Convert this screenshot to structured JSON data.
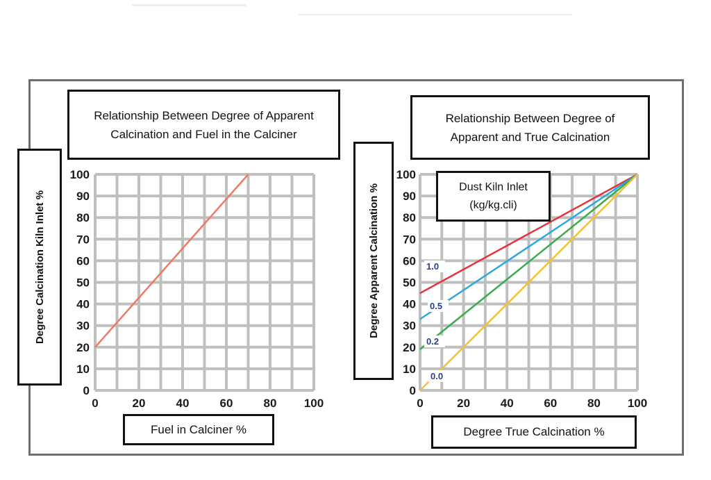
{
  "chart_data": [
    {
      "type": "line",
      "title": "Relationship Between Degree of Apparent Calcination and Fuel in the Calciner",
      "xlabel": "Fuel in Calciner %",
      "ylabel": "Degree Calcination Kiln Inlet %",
      "xlim": [
        0,
        100
      ],
      "ylim": [
        0,
        100
      ],
      "xticks": [
        "0",
        "20",
        "40",
        "60",
        "80",
        "100"
      ],
      "yticks": [
        "100",
        "90",
        "80",
        "70",
        "60",
        "50",
        "40",
        "30",
        "20",
        "10",
        "0"
      ],
      "grid": true,
      "series": [
        {
          "color": "#f07860",
          "x": [
            0,
            70
          ],
          "y": [
            20,
            100
          ]
        }
      ]
    },
    {
      "type": "line",
      "title": "Relationship Between Degree of Apparent and True Calcination",
      "xlabel": "Degree True Calcination %",
      "ylabel": "Degree Apparent Calcination %",
      "xlim": [
        0,
        100
      ],
      "ylim": [
        0,
        100
      ],
      "xticks": [
        "0",
        "20",
        "40",
        "60",
        "80",
        "100"
      ],
      "yticks": [
        "100",
        "90",
        "80",
        "70",
        "60",
        "50",
        "40",
        "30",
        "20",
        "10",
        "0"
      ],
      "grid": true,
      "legend_title": "Dust Kiln Inlet (kg/kg.cli)",
      "series": [
        {
          "name": "1.0",
          "color": "#e8313c",
          "x": [
            0,
            100
          ],
          "y": [
            45,
            100
          ]
        },
        {
          "name": "0.5",
          "color": "#2aa8e0",
          "x": [
            0,
            100
          ],
          "y": [
            33,
            100
          ]
        },
        {
          "name": "0.2",
          "color": "#3aaa4a",
          "x": [
            0,
            100
          ],
          "y": [
            19,
            100
          ]
        },
        {
          "name": "0.0",
          "color": "#f2c230",
          "x": [
            0,
            100
          ],
          "y": [
            0,
            100
          ]
        }
      ]
    }
  ],
  "left": {
    "title_line1": "Relationship Between Degree of Apparent",
    "title_line2": "Calcination and Fuel in the Calciner",
    "ylabel": "Degree Calcination Kiln Inlet %",
    "xlabel": "Fuel in Calciner %"
  },
  "right": {
    "title_line1": "Relationship Between Degree of",
    "title_line2": "Apparent and True Calcination",
    "ylabel": "Degree Apparent Calcination %",
    "xlabel": "Degree True Calcination %",
    "legend_line1": "Dust Kiln Inlet",
    "legend_line2": "(kg/kg.cli)"
  },
  "colors": {
    "grid": "#bfbfbf",
    "frame": "#6f6f6f",
    "box_border": "#111111"
  }
}
